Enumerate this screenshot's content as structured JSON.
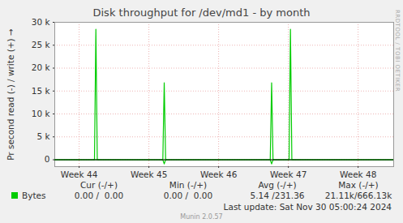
{
  "chart_data": {
    "type": "line",
    "title": "Disk throughput for /dev/md1 - by month",
    "y_label": "Pr second read (-) / write (+)",
    "x": [
      43.65,
      44.22,
      44.24,
      44.26,
      45.2,
      45.22,
      45.24,
      46.74,
      46.76,
      46.78,
      47.01,
      47.03,
      47.05,
      48.51
    ],
    "series": [
      {
        "name": "Bytes",
        "color": "#00cc00",
        "values": [
          0,
          0,
          28500,
          0,
          0,
          16800,
          0,
          0,
          16800,
          0,
          0,
          28500,
          0,
          0
        ],
        "read_values": [
          0,
          0,
          0,
          0,
          0,
          -900,
          0,
          0,
          -900,
          0,
          0,
          0,
          0,
          0
        ]
      }
    ],
    "xlim": [
      43.65,
      48.51
    ],
    "xticks": [
      {
        "value": 44,
        "label": "Week 44"
      },
      {
        "value": 45,
        "label": "Week 45"
      },
      {
        "value": 46,
        "label": "Week 46"
      },
      {
        "value": 47,
        "label": "Week 47"
      },
      {
        "value": 48,
        "label": "Week 48"
      }
    ],
    "ylim": [
      -1500,
      30000
    ],
    "yticks": [
      0,
      {
        "value": 5000,
        "label": "5 k"
      },
      {
        "value": 10000,
        "label": "10 k"
      },
      {
        "value": 15000,
        "label": "15 k"
      },
      {
        "value": 20000,
        "label": "20 k"
      },
      {
        "value": 25000,
        "label": "25 k"
      },
      {
        "value": 30000,
        "label": "30 k"
      }
    ],
    "grid": true,
    "legend_table": {
      "columns": [
        "Cur (-/+)",
        "Min (-/+)",
        "Avg (-/+)",
        "Max (-/+)"
      ],
      "rows": [
        {
          "name": "Bytes",
          "cells": [
            "0.00 /  0.00",
            "0.00 /  0.00",
            "5.14 /231.36",
            "21.11k/666.13k"
          ]
        }
      ]
    },
    "last_update": "Last update: Sat Nov 30 05:00:24 2024",
    "footer": "Munin 2.0.57",
    "side_text": "RRDTOOL / TOBI OETIKER"
  }
}
